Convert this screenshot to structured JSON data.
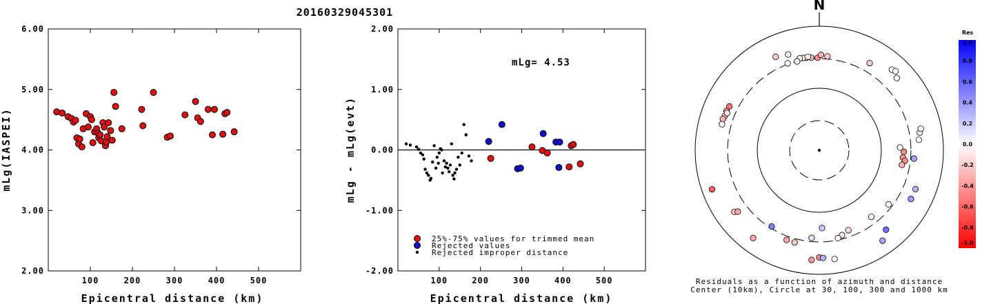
{
  "title": "20160329045301",
  "chart_data": [
    {
      "type": "scatter",
      "xlabel": "Epicentral distance (km)",
      "ylabel": "mLg(IASPEI)",
      "xlim": [
        0,
        600
      ],
      "ylim": [
        2.0,
        6.0
      ],
      "xticks": [
        "100",
        "200",
        "300",
        "400",
        "500"
      ],
      "yticks": [
        "2.00",
        "3.00",
        "4.00",
        "5.00",
        "6.00"
      ],
      "series": [
        {
          "marker_color": "#dd1111",
          "points": [
            [
              20,
              4.63
            ],
            [
              33,
              4.61
            ],
            [
              47,
              4.55
            ],
            [
              55,
              4.52
            ],
            [
              60,
              4.46
            ],
            [
              65,
              4.49
            ],
            [
              68,
              4.2
            ],
            [
              72,
              4.1
            ],
            [
              75,
              4.18
            ],
            [
              80,
              4.05
            ],
            [
              83,
              4.35
            ],
            [
              90,
              4.6
            ],
            [
              95,
              4.38
            ],
            [
              100,
              4.55
            ],
            [
              103,
              4.5
            ],
            [
              106,
              4.12
            ],
            [
              110,
              4.3
            ],
            [
              115,
              4.35
            ],
            [
              118,
              4.28
            ],
            [
              120,
              4.2
            ],
            [
              123,
              4.25
            ],
            [
              126,
              4.15
            ],
            [
              130,
              4.45
            ],
            [
              133,
              4.38
            ],
            [
              136,
              4.07
            ],
            [
              138,
              4.13
            ],
            [
              140,
              4.22
            ],
            [
              143,
              4.45
            ],
            [
              148,
              4.32
            ],
            [
              152,
              4.16
            ],
            [
              156,
              4.95
            ],
            [
              160,
              4.72
            ],
            [
              175,
              4.35
            ],
            [
              222,
              4.67
            ],
            [
              225,
              4.4
            ],
            [
              250,
              4.95
            ],
            [
              283,
              4.21
            ],
            [
              290,
              4.23
            ],
            [
              325,
              4.58
            ],
            [
              350,
              4.8
            ],
            [
              355,
              4.53
            ],
            [
              362,
              4.47
            ],
            [
              380,
              4.67
            ],
            [
              390,
              4.25
            ],
            [
              395,
              4.67
            ],
            [
              415,
              4.26
            ],
            [
              420,
              4.6
            ],
            [
              425,
              4.62
            ],
            [
              442,
              4.3
            ]
          ]
        }
      ]
    },
    {
      "type": "scatter",
      "xlabel": "Epicentral distance (km)",
      "ylabel": "mLg - mLg(evt)",
      "xlim": [
        0,
        600
      ],
      "ylim": [
        -2.0,
        2.0
      ],
      "xticks": [
        "100",
        "200",
        "300",
        "400",
        "500"
      ],
      "yticks": [
        "-2.00",
        "-1.00",
        "0.00",
        "1.00",
        "2.00"
      ],
      "annotation": "mLg= 4.53",
      "zero_line": 0,
      "series": [
        {
          "name": "25%-75% values for trimmed mean",
          "marker_color": "#dd1111",
          "points": [
            [
              225,
              -0.14
            ],
            [
              325,
              0.05
            ],
            [
              350,
              -0.01
            ],
            [
              362,
              -0.05
            ],
            [
              420,
              0.07
            ],
            [
              425,
              0.09
            ],
            [
              415,
              -0.28
            ],
            [
              442,
              -0.23
            ]
          ]
        },
        {
          "name": "Rejected values",
          "marker_color": "#1111cc",
          "points": [
            [
              220,
              0.14
            ],
            [
              252,
              0.42
            ],
            [
              290,
              -0.31
            ],
            [
              297,
              -0.3
            ],
            [
              352,
              0.27
            ],
            [
              383,
              0.13
            ],
            [
              392,
              0.13
            ],
            [
              390,
              -0.29
            ]
          ]
        },
        {
          "name": "Rejected improper distance",
          "marker_color": "#000000",
          "points": [
            [
              20,
              0.1
            ],
            [
              30,
              0.08
            ],
            [
              45,
              0.05
            ],
            [
              50,
              0.01
            ],
            [
              55,
              -0.05
            ],
            [
              60,
              -0.08
            ],
            [
              63,
              -0.15
            ],
            [
              66,
              -0.32
            ],
            [
              70,
              -0.38
            ],
            [
              74,
              -0.42
            ],
            [
              78,
              -0.5
            ],
            [
              80,
              -0.47
            ],
            [
              84,
              -0.2
            ],
            [
              88,
              0.07
            ],
            [
              92,
              -0.3
            ],
            [
              95,
              -0.12
            ],
            [
              98,
              -0.22
            ],
            [
              100,
              -0.05
            ],
            [
              103,
              0.02
            ],
            [
              106,
              0.0
            ],
            [
              108,
              -0.38
            ],
            [
              112,
              -0.18
            ],
            [
              115,
              -0.28
            ],
            [
              118,
              -0.22
            ],
            [
              121,
              -0.3
            ],
            [
              124,
              -0.36
            ],
            [
              127,
              -0.25
            ],
            [
              130,
              0.1
            ],
            [
              133,
              -0.42
            ],
            [
              136,
              -0.48
            ],
            [
              138,
              -0.38
            ],
            [
              142,
              -0.32
            ],
            [
              146,
              -0.12
            ],
            [
              150,
              -0.25
            ],
            [
              155,
              -0.05
            ],
            [
              160,
              0.42
            ],
            [
              165,
              0.25
            ],
            [
              172,
              -0.1
            ],
            [
              178,
              -0.18
            ]
          ]
        }
      ]
    },
    {
      "type": "scatter",
      "subtype": "polar",
      "north_label": "N",
      "caption_line1": "Residuals as a function of azimuth and distance",
      "caption_line2": "Center (10km), Circle at 30, 100, 300 and 1000 km",
      "rings_km": [
        30,
        100,
        300,
        1000
      ],
      "colorbar": {
        "title": "Res",
        "ticks": [
          "1.0",
          "0.8",
          "0.6",
          "0.4",
          "0.2",
          "0.0",
          "-0.2",
          "-0.4",
          "-0.6",
          "-0.8",
          "-1.0"
        ],
        "max_color": "#0000ff",
        "zero_color": "#ffffff",
        "min_color": "#ff0000"
      },
      "points": [
        {
          "az": 42,
          "dist_km": 560,
          "res": 0.0
        },
        {
          "az": 44,
          "dist_km": 590,
          "res": 0.0
        },
        {
          "az": 342,
          "dist_km": 420,
          "res": -0.05
        },
        {
          "az": 335,
          "dist_km": 460,
          "res": -0.2
        },
        {
          "az": 359,
          "dist_km": 310,
          "res": -0.45
        },
        {
          "az": 355,
          "dist_km": 315,
          "res": -0.3
        },
        {
          "az": 352,
          "dist_km": 320,
          "res": -0.15
        },
        {
          "az": 350,
          "dist_km": 325,
          "res": -0.1
        },
        {
          "az": 348,
          "dist_km": 328,
          "res": -0.05
        },
        {
          "az": 353,
          "dist_km": 330,
          "res": 0.0
        },
        {
          "az": 1,
          "dist_km": 345,
          "res": -0.3
        },
        {
          "az": 5,
          "dist_km": 330,
          "res": -0.2
        },
        {
          "az": 346,
          "dist_km": 300,
          "res": 0.05
        },
        {
          "az": 340,
          "dist_km": 310,
          "res": 0.0
        },
        {
          "az": 296,
          "dist_km": 410,
          "res": -0.55
        },
        {
          "az": 293,
          "dist_km": 420,
          "res": -0.4
        },
        {
          "az": 290,
          "dist_km": 415,
          "res": -0.25
        },
        {
          "az": 292,
          "dist_km": 400,
          "res": -0.1
        },
        {
          "az": 288,
          "dist_km": 430,
          "res": -0.3
        },
        {
          "az": 285,
          "dist_km": 420,
          "res": 0.0
        },
        {
          "az": 30,
          "dist_km": 420,
          "res": -0.2
        },
        {
          "az": 47,
          "dist_km": 510,
          "res": 0.0
        },
        {
          "az": 91,
          "dist_km": 230,
          "res": -0.45
        },
        {
          "az": 95,
          "dist_km": 225,
          "res": -0.4
        },
        {
          "az": 97,
          "dist_km": 245,
          "res": -0.45
        },
        {
          "az": 100,
          "dist_km": 225,
          "res": -0.3
        },
        {
          "az": 88,
          "dist_km": 200,
          "res": 0.0
        },
        {
          "az": 95,
          "dist_km": 340,
          "res": 0.35
        },
        {
          "az": 84,
          "dist_km": 410,
          "res": 0.0
        },
        {
          "az": 80,
          "dist_km": 440,
          "res": 0.05
        },
        {
          "az": 78,
          "dist_km": 470,
          "res": 0.0
        },
        {
          "az": 112,
          "dist_km": 470,
          "res": 0.3
        },
        {
          "az": 118,
          "dist_km": 470,
          "res": 0.4
        },
        {
          "az": 140,
          "dist_km": 470,
          "res": 0.55
        },
        {
          "az": 145,
          "dist_km": 600,
          "res": 0.35
        },
        {
          "az": 128,
          "dist_km": 260,
          "res": 0.0
        },
        {
          "az": 142,
          "dist_km": 230,
          "res": -0.05
        },
        {
          "az": 160,
          "dist_km": 235,
          "res": -0.15
        },
        {
          "az": 165,
          "dist_km": 260,
          "res": -0.1
        },
        {
          "az": 168,
          "dist_km": 280,
          "res": 0.0
        },
        {
          "az": 178,
          "dist_km": 180,
          "res": 0.2
        },
        {
          "az": 185,
          "dist_km": 262,
          "res": 0.1
        },
        {
          "az": 195,
          "dist_km": 345,
          "res": -0.2
        },
        {
          "az": 200,
          "dist_km": 345,
          "res": -0.35
        },
        {
          "az": 212,
          "dist_km": 280,
          "res": 0.5
        },
        {
          "az": 180,
          "dist_km": 535,
          "res": -0.45
        },
        {
          "az": 178,
          "dist_km": 545,
          "res": 0.3
        },
        {
          "az": 184,
          "dist_km": 590,
          "res": -0.4
        },
        {
          "az": 172,
          "dist_km": 590,
          "res": 0.0
        },
        {
          "az": 217,
          "dist_km": 590,
          "res": -0.35
        },
        {
          "az": 234,
          "dist_km": 490,
          "res": -0.25
        },
        {
          "az": 233,
          "dist_km": 440,
          "res": -0.35
        },
        {
          "az": 250,
          "dist_km": 690,
          "res": -0.6
        }
      ]
    }
  ]
}
